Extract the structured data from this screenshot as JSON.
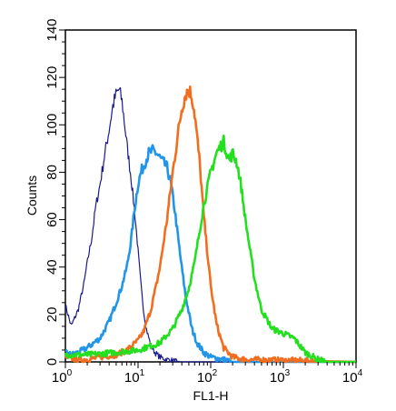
{
  "chart_data": {
    "type": "line",
    "xlabel": "FL1-H",
    "ylabel": "Counts",
    "x_scale": "log",
    "xlim": [
      1,
      10000
    ],
    "ylim": [
      0,
      140
    ],
    "x_ticks": [
      {
        "value": 1,
        "base": "10",
        "exp": "0"
      },
      {
        "value": 10,
        "base": "10",
        "exp": "1"
      },
      {
        "value": 100,
        "base": "10",
        "exp": "2"
      },
      {
        "value": 1000,
        "base": "10",
        "exp": "3"
      },
      {
        "value": 10000,
        "base": "10",
        "exp": "4"
      }
    ],
    "y_ticks": [
      0,
      20,
      40,
      60,
      80,
      100,
      120,
      140
    ],
    "grid": false,
    "legend": "none",
    "series": [
      {
        "color": "#1a1a8c",
        "x": [
          1,
          1.2,
          1.5,
          1.8,
          2,
          2.3,
          2.6,
          3,
          3.5,
          4,
          4.5,
          5,
          5.5,
          6,
          6.5,
          7,
          8,
          9,
          10,
          11,
          12,
          13,
          15,
          17,
          20,
          25,
          30,
          40,
          50,
          100,
          1000,
          10000
        ],
        "y": [
          24,
          15,
          22,
          33,
          42,
          52,
          65,
          75,
          88,
          98,
          108,
          113,
          115,
          110,
          101,
          92,
          78,
          63,
          47,
          32,
          21,
          14,
          7,
          4,
          2,
          1,
          0.5,
          0,
          0,
          0,
          0,
          0
        ]
      },
      {
        "color": "#2196e8",
        "x": [
          1,
          1.2,
          1.5,
          2,
          3,
          4,
          5,
          6,
          7,
          8,
          9,
          10,
          11,
          12,
          14,
          16,
          18,
          20,
          25,
          28,
          32,
          38,
          45,
          55,
          65,
          80,
          100,
          150,
          200,
          10000
        ],
        "y": [
          4,
          3,
          4,
          6,
          10,
          17,
          25,
          32,
          40,
          51,
          65,
          75,
          80,
          83,
          88,
          89,
          88,
          86,
          82,
          76,
          64,
          45,
          28,
          14,
          8,
          4,
          2,
          1,
          0,
          0
        ]
      },
      {
        "color": "#f26d1e",
        "x": [
          1,
          1.5,
          2,
          3,
          5,
          7,
          10,
          12,
          15,
          18,
          20,
          25,
          30,
          35,
          40,
          45,
          50,
          55,
          60,
          70,
          80,
          100,
          120,
          150,
          200,
          300,
          10000
        ],
        "y": [
          2,
          1,
          1,
          2,
          3,
          5,
          9,
          13,
          22,
          33,
          40,
          60,
          80,
          95,
          107,
          113,
          115,
          112,
          105,
          85,
          62,
          32,
          16,
          6,
          2,
          1,
          0
        ]
      },
      {
        "color": "#22e01e",
        "x": [
          1,
          2,
          5,
          10,
          20,
          30,
          40,
          50,
          60,
          70,
          80,
          100,
          120,
          150,
          180,
          200,
          230,
          260,
          300,
          400,
          500,
          700,
          1000,
          1400,
          2000,
          3000,
          4000,
          10000
        ],
        "y": [
          3,
          3,
          4,
          5,
          8,
          14,
          22,
          31,
          42,
          55,
          66,
          80,
          88,
          93,
          85,
          88,
          84,
          75,
          60,
          35,
          22,
          14,
          12,
          10,
          4,
          1,
          0,
          0
        ]
      }
    ]
  }
}
